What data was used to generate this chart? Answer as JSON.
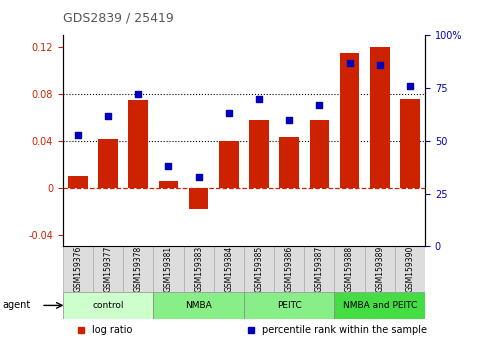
{
  "title": "GDS2839 / 25419",
  "samples": [
    "GSM159376",
    "GSM159377",
    "GSM159378",
    "GSM159381",
    "GSM159383",
    "GSM159384",
    "GSM159385",
    "GSM159386",
    "GSM159387",
    "GSM159388",
    "GSM159389",
    "GSM159390"
  ],
  "log_ratio": [
    0.01,
    0.042,
    0.075,
    0.006,
    -0.018,
    0.04,
    0.058,
    0.043,
    0.058,
    0.115,
    0.12,
    0.076
  ],
  "percentile_rank": [
    53,
    62,
    72,
    38,
    33,
    63,
    70,
    60,
    67,
    87,
    86,
    76
  ],
  "groups": [
    {
      "label": "control",
      "start": 0,
      "end": 3,
      "color": "#ccffcc"
    },
    {
      "label": "NMBA",
      "start": 3,
      "end": 6,
      "color": "#88ee88"
    },
    {
      "label": "PEITC",
      "start": 6,
      "end": 9,
      "color": "#88ee88"
    },
    {
      "label": "NMBA and PEITC",
      "start": 9,
      "end": 12,
      "color": "#44dd44"
    }
  ],
  "ylim_left": [
    -0.05,
    0.13
  ],
  "ylim_right": [
    0,
    100
  ],
  "bar_color": "#cc2200",
  "dot_color": "#0000bb",
  "zero_line_color": "#cc2200",
  "title_color": "#555555",
  "left_tick_color": "#cc2200",
  "right_tick_color": "#0000bb",
  "yticks_left": [
    -0.04,
    0.0,
    0.04,
    0.08,
    0.12
  ],
  "ytick_labels_left": [
    "-0.04",
    "0",
    "0.04",
    "0.08",
    "0.12"
  ],
  "yticks_right": [
    0,
    25,
    50,
    75,
    100
  ],
  "ytick_labels_right": [
    "0",
    "25",
    "50",
    "75",
    "100%"
  ],
  "dotted_lines": [
    0.04,
    0.08
  ],
  "legend_labels": [
    "log ratio",
    "percentile rank within the sample"
  ],
  "legend_colors": [
    "#cc2200",
    "#0000bb"
  ],
  "agent_label": "agent"
}
